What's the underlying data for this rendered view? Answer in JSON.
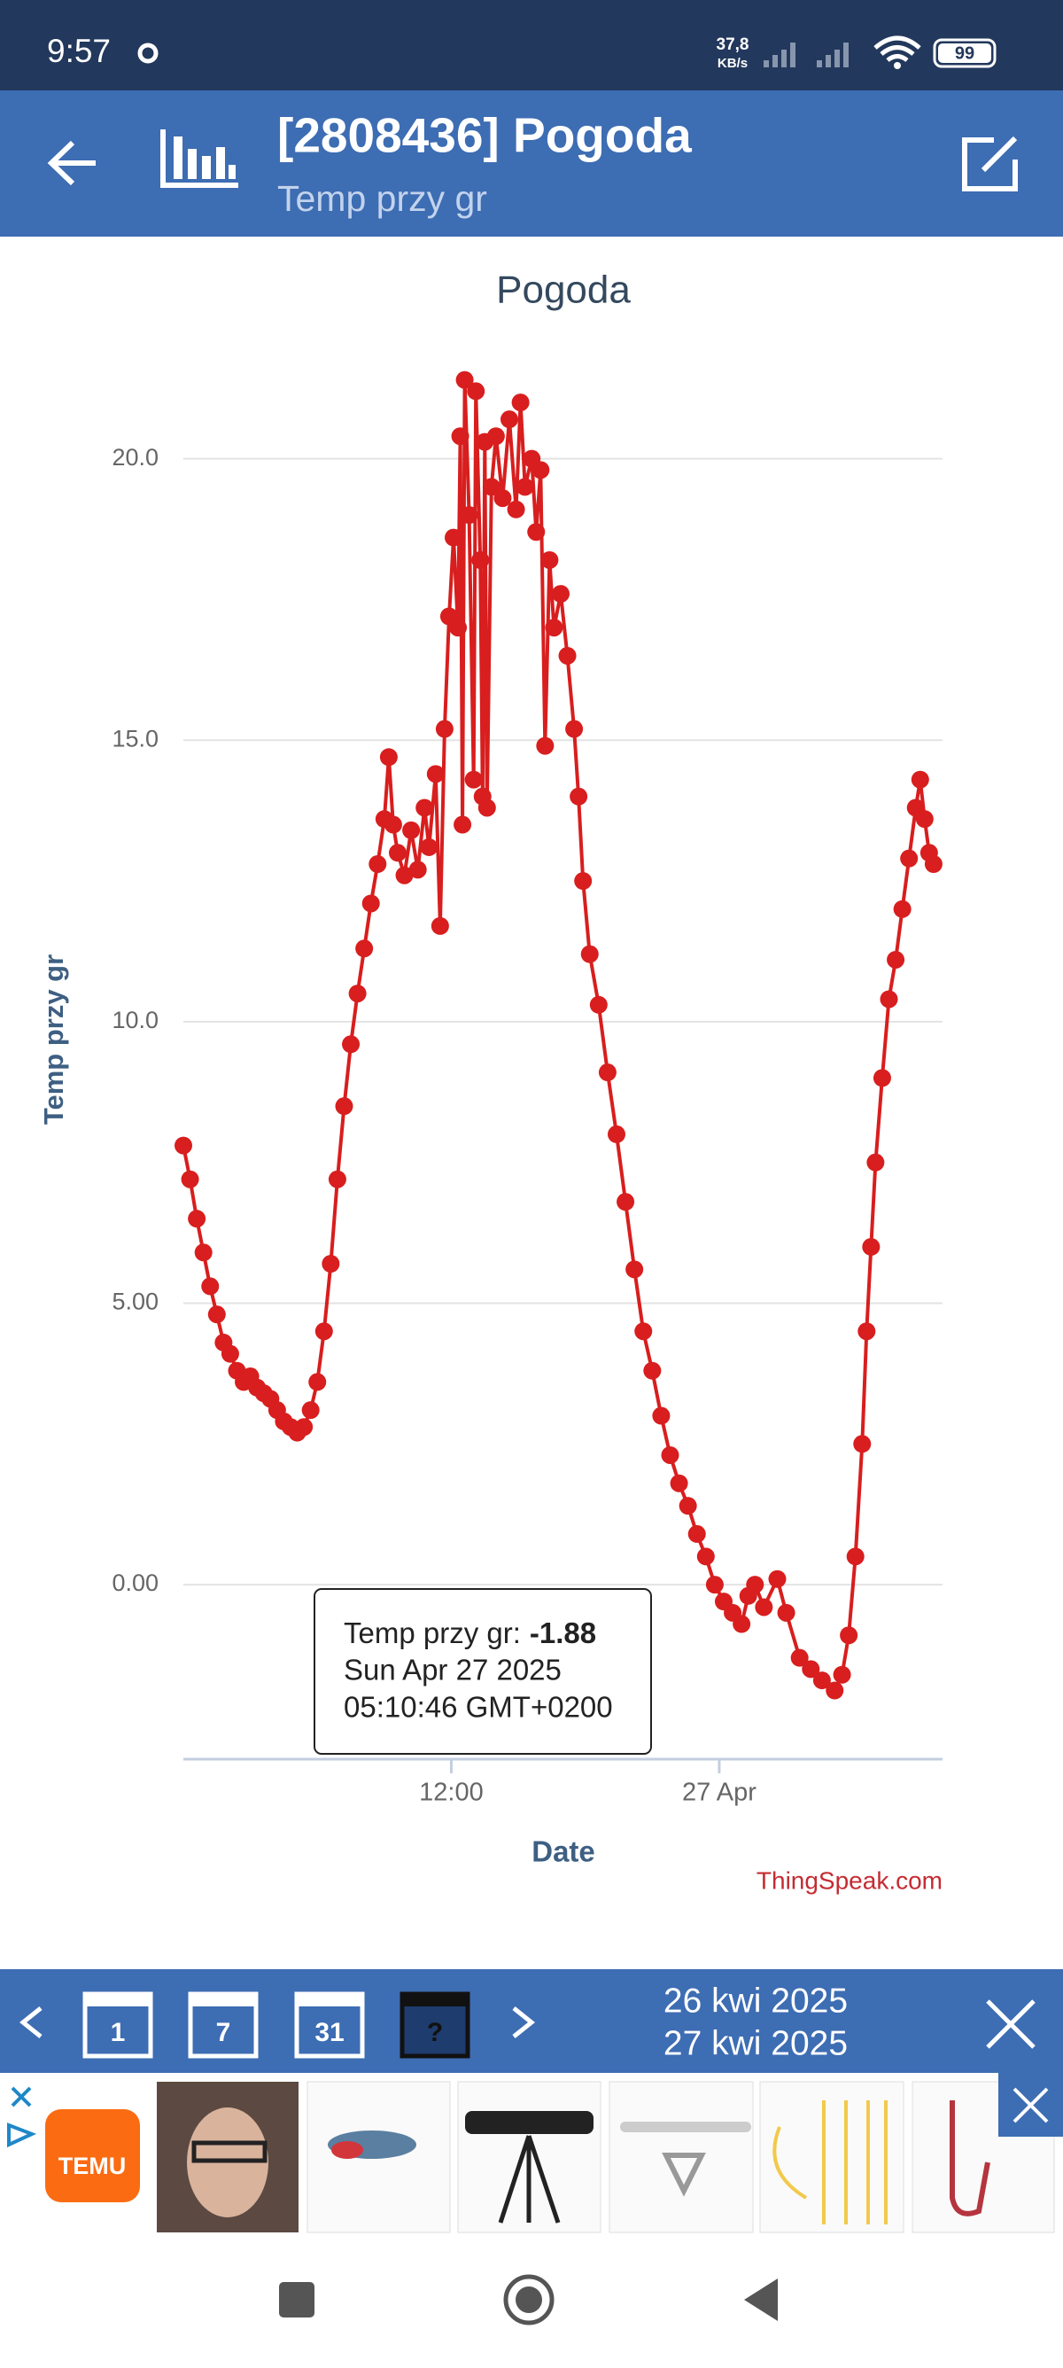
{
  "status": {
    "time": "9:57",
    "speed": "37,8",
    "speed_unit": "KB/s",
    "battery": "99"
  },
  "header": {
    "title": "[2808436] Pogoda",
    "subtitle": "Temp przy gr"
  },
  "chart_data": {
    "type": "line",
    "title": "Pogoda",
    "x_label": "Date",
    "y_label": "Temp przy gr",
    "watermark": "ThingSpeak.com",
    "x": [
      0,
      0.3,
      0.6,
      0.9,
      1.2,
      1.5,
      1.8,
      2.1,
      2.4,
      2.7,
      3.0,
      3.3,
      3.6,
      3.9,
      4.2,
      4.5,
      4.8,
      5.1,
      5.4,
      5.7,
      6.0,
      6.3,
      6.6,
      6.9,
      7.2,
      7.5,
      7.8,
      8.1,
      8.4,
      8.7,
      9.0,
      9.2,
      9.4,
      9.6,
      9.9,
      10.2,
      10.5,
      10.8,
      11.0,
      11.3,
      11.5,
      11.7,
      11.9,
      12.1,
      12.3,
      12.4,
      12.5,
      12.6,
      12.8,
      13.0,
      13.1,
      13.3,
      13.4,
      13.5,
      13.6,
      13.8,
      14.0,
      14.3,
      14.6,
      14.9,
      15.1,
      15.3,
      15.6,
      15.8,
      16.0,
      16.2,
      16.4,
      16.6,
      16.9,
      17.2,
      17.5,
      17.7,
      17.9,
      18.2,
      18.6,
      19.0,
      19.4,
      19.8,
      20.2,
      20.6,
      21.0,
      21.4,
      21.8,
      22.2,
      22.6,
      23.0,
      23.4,
      23.8,
      24.2,
      24.6,
      25.0,
      25.3,
      25.6,
      26.0,
      26.6,
      27.0,
      27.6,
      28.1,
      28.6,
      29.17,
      29.5,
      29.8,
      30.1,
      30.4,
      30.6,
      30.8,
      31.0,
      31.3,
      31.6,
      31.9,
      32.2,
      32.5,
      32.8,
      33.0,
      33.2,
      33.4,
      33.6
    ],
    "series": [
      {
        "color": "#d81e1e",
        "values": [
          7.8,
          7.2,
          6.5,
          5.9,
          5.3,
          4.8,
          4.3,
          4.1,
          3.8,
          3.6,
          3.7,
          3.5,
          3.4,
          3.3,
          3.1,
          2.9,
          2.8,
          2.7,
          2.8,
          3.1,
          3.6,
          4.5,
          5.7,
          7.2,
          8.5,
          9.6,
          10.5,
          11.3,
          12.1,
          12.8,
          13.6,
          14.7,
          13.5,
          13.0,
          12.6,
          13.4,
          12.7,
          13.8,
          13.1,
          14.4,
          11.7,
          15.2,
          17.2,
          18.6,
          17.0,
          20.4,
          13.5,
          21.4,
          19.0,
          14.3,
          21.2,
          18.2,
          14.0,
          20.3,
          13.8,
          19.5,
          20.4,
          19.3,
          20.7,
          19.1,
          21.0,
          19.5,
          20.0,
          18.7,
          19.8,
          14.9,
          18.2,
          17.0,
          17.6,
          16.5,
          15.2,
          14.0,
          12.5,
          11.2,
          10.3,
          9.1,
          8.0,
          6.8,
          5.6,
          4.5,
          3.8,
          3.0,
          2.3,
          1.8,
          1.4,
          0.9,
          0.5,
          0.0,
          -0.3,
          -0.5,
          -0.7,
          -0.2,
          0.0,
          -0.4,
          0.1,
          -0.5,
          -1.3,
          -1.5,
          -1.7,
          -1.88,
          -1.6,
          -0.9,
          0.5,
          2.5,
          4.5,
          6.0,
          7.5,
          9.0,
          10.4,
          11.1,
          12.0,
          12.9,
          13.8,
          14.3,
          13.6,
          13.0,
          12.8
        ]
      }
    ],
    "xlim": [
      0,
      34
    ],
    "xticks": [
      {
        "value": 12,
        "label": "12:00"
      },
      {
        "value": 24,
        "label": "27 Apr"
      }
    ],
    "ylim": [
      -3.1,
      21.6
    ],
    "yticks": [
      {
        "value": 0,
        "label": "0.00"
      },
      {
        "value": 5,
        "label": "5.00"
      },
      {
        "value": 10,
        "label": "10.0"
      },
      {
        "value": 15,
        "label": "15.0"
      },
      {
        "value": 20,
        "label": "20.0"
      }
    ],
    "grid": true,
    "tooltip": {
      "label": "Temp przy gr:",
      "value": -1.88,
      "date": "Sun Apr 27 2025",
      "time": "05:10:46 GMT+0200"
    }
  },
  "toolbar": {
    "buttons": [
      "1",
      "7",
      "31",
      "?"
    ],
    "date_from": "26 kwi 2025",
    "date_to": "27 kwi 2025"
  },
  "ad": {
    "brand": "TEMU"
  }
}
